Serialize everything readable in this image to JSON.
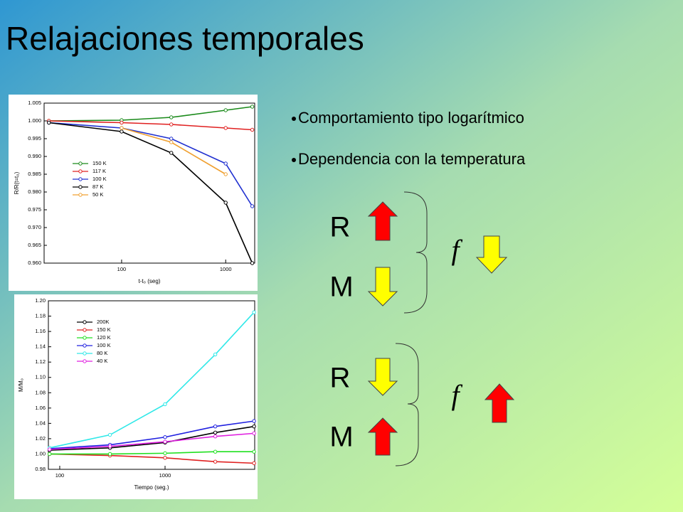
{
  "title": "Relajaciones temporales",
  "bullets": [
    "Comportamiento tipo logarítmico",
    "Dependencia con la temperatura"
  ],
  "diagram": {
    "groups": [
      {
        "labels": [
          "R",
          "M"
        ],
        "result": "f"
      },
      {
        "labels": [
          "R",
          "M"
        ],
        "result": "f"
      }
    ]
  },
  "chart_data": [
    {
      "type": "line",
      "xscale": "log",
      "markers": true,
      "legend": "center left",
      "xlabel": "t-t₀ (seg)",
      "ylabel": "R/R(t=t₀)",
      "x": [
        20,
        100,
        300,
        1000,
        1800
      ],
      "xlim": [
        18,
        1900
      ],
      "xticks": [
        100,
        1000
      ],
      "ylim": [
        0.96,
        1.005
      ],
      "yticks": [
        {
          "value": 0.96,
          "label": "0.960"
        },
        0.965,
        {
          "value": 0.97,
          "label": "0.970"
        },
        0.975,
        {
          "value": 0.98,
          "label": "0.980"
        },
        0.985,
        {
          "value": 0.99,
          "label": "0.990"
        },
        0.995,
        {
          "value": 1,
          "label": "1.000"
        },
        1.005
      ],
      "series": [
        {
          "name": "150 K",
          "color": "#1a8a1a",
          "values": [
            1.0,
            1.0002,
            1.001,
            1.003,
            1.004
          ]
        },
        {
          "name": "117 K",
          "color": "#e02020",
          "values": [
            1.0,
            0.9995,
            0.999,
            0.998,
            0.9975
          ]
        },
        {
          "name": "100 K",
          "color": "#2030d0",
          "values": [
            0.9995,
            0.998,
            0.995,
            0.988,
            0.976
          ]
        },
        {
          "name": "87 K",
          "color": "#000000",
          "values": [
            0.9995,
            0.997,
            0.991,
            0.977,
            0.96
          ]
        },
        {
          "name": "50 K",
          "color": "#f0a030",
          "values": [
            null,
            0.998,
            0.994,
            0.985,
            null
          ]
        }
      ]
    },
    {
      "type": "line",
      "xscale": "log",
      "markers": true,
      "legend": "upper left",
      "xlabel": "Tiempo (seg.)",
      "ylabel": "M/M₀",
      "x": [
        80,
        300,
        1000,
        3000,
        7000
      ],
      "xlim": [
        78,
        7100
      ],
      "xticks": [
        100,
        1000
      ],
      "ylim": [
        0.98,
        1.2
      ],
      "yticks": [
        0.98,
        {
          "value": 1,
          "label": "1.00"
        },
        1.02,
        1.04,
        1.06,
        1.08,
        {
          "value": 1.1,
          "label": "1.10"
        },
        1.12,
        1.14,
        1.16,
        1.18,
        {
          "value": 1.2,
          "label": "1.20"
        }
      ],
      "series": [
        {
          "name": "200K",
          "color": "#000000",
          "values": [
            1.005,
            1.008,
            1.015,
            1.028,
            1.036
          ]
        },
        {
          "name": "150 K",
          "color": "#e02020",
          "values": [
            1.0,
            0.998,
            0.995,
            0.99,
            0.988
          ]
        },
        {
          "name": "120 K",
          "color": "#20e020",
          "values": [
            1.0,
            1.0,
            1.001,
            1.003,
            1.003
          ]
        },
        {
          "name": "100 K",
          "color": "#2020e0",
          "values": [
            1.007,
            1.012,
            1.022,
            1.036,
            1.043
          ]
        },
        {
          "name": "80 K",
          "color": "#30e8e8",
          "values": [
            1.008,
            1.025,
            1.065,
            1.13,
            1.185
          ]
        },
        {
          "name": "40 K",
          "color": "#e020e0",
          "values": [
            1.006,
            1.01,
            1.016,
            1.023,
            1.027
          ]
        }
      ]
    }
  ]
}
